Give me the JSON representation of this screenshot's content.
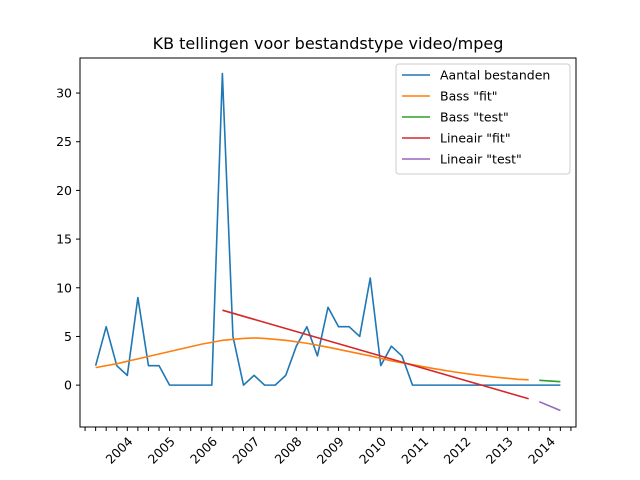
{
  "chart_data": {
    "type": "line",
    "title": "KB tellingen voor bestandstype video/mpeg",
    "xlabel": "",
    "ylabel": "",
    "xlim": [
      2002.88,
      2014.62
    ],
    "ylim": [
      -4.3,
      33.6
    ],
    "y_ticks": [
      0,
      5,
      10,
      15,
      20,
      25,
      30
    ],
    "x_tick_labels": [
      {
        "x": 2004.0,
        "label": "2004"
      },
      {
        "x": 2005.0,
        "label": "2005"
      },
      {
        "x": 2006.0,
        "label": "2006"
      },
      {
        "x": 2007.0,
        "label": "2007"
      },
      {
        "x": 2008.0,
        "label": "2008"
      },
      {
        "x": 2009.0,
        "label": "2009"
      },
      {
        "x": 2010.0,
        "label": "2010"
      },
      {
        "x": 2011.0,
        "label": "2011"
      },
      {
        "x": 2012.0,
        "label": "2012"
      },
      {
        "x": 2013.0,
        "label": "2013"
      },
      {
        "x": 2014.0,
        "label": "2014"
      }
    ],
    "grid": false,
    "legend_position": "top-right",
    "series": [
      {
        "name": "Aantal bestanden",
        "color": "#1f77b4",
        "x": [
          2003.25,
          2003.5,
          2003.75,
          2004.0,
          2004.25,
          2004.5,
          2004.75,
          2005.0,
          2005.25,
          2005.5,
          2005.75,
          2006.0,
          2006.25,
          2006.5,
          2006.75,
          2007.0,
          2007.25,
          2007.5,
          2007.75,
          2008.0,
          2008.25,
          2008.5,
          2008.75,
          2009.0,
          2009.25,
          2009.5,
          2009.75,
          2010.0,
          2010.25,
          2010.5,
          2010.75,
          2011.0,
          2011.25,
          2011.5,
          2011.75,
          2012.0,
          2012.25,
          2012.5,
          2012.75,
          2013.0,
          2013.25,
          2013.5,
          2013.75,
          2014.0,
          2014.25
        ],
        "y": [
          2,
          6,
          2,
          1,
          9,
          2,
          2,
          0,
          0,
          0,
          0,
          0,
          32,
          5,
          0,
          1,
          0,
          0,
          1,
          4,
          6,
          3,
          8,
          6,
          6,
          5,
          11,
          2,
          4,
          3,
          0,
          0,
          0,
          0,
          0,
          0,
          0,
          0,
          0,
          0,
          0,
          0,
          0,
          0,
          0
        ]
      },
      {
        "name": "Bass \"fit\"",
        "color": "#ff7f0e",
        "x": [
          2003.25,
          2003.75,
          2004.25,
          2004.75,
          2005.25,
          2005.75,
          2006.25,
          2006.75,
          2007.0,
          2007.25,
          2007.75,
          2008.25,
          2008.75,
          2009.25,
          2009.75,
          2010.25,
          2010.75,
          2011.25,
          2011.75,
          2012.25,
          2012.75,
          2013.25,
          2013.5
        ],
        "y": [
          1.8,
          2.2,
          2.7,
          3.2,
          3.7,
          4.2,
          4.6,
          4.8,
          4.85,
          4.8,
          4.6,
          4.3,
          3.9,
          3.45,
          3.0,
          2.5,
          2.1,
          1.7,
          1.35,
          1.05,
          0.8,
          0.6,
          0.55
        ]
      },
      {
        "name": "Bass \"test\"",
        "color": "#2ca02c",
        "x": [
          2013.75,
          2014.25
        ],
        "y": [
          0.5,
          0.35
        ]
      },
      {
        "name": "Lineair \"fit\"",
        "color": "#d62728",
        "x": [
          2006.25,
          2013.5
        ],
        "y": [
          7.7,
          -1.4
        ]
      },
      {
        "name": "Lineair \"test\"",
        "color": "#9467bd",
        "x": [
          2013.75,
          2014.25
        ],
        "y": [
          -1.7,
          -2.6
        ]
      }
    ]
  }
}
